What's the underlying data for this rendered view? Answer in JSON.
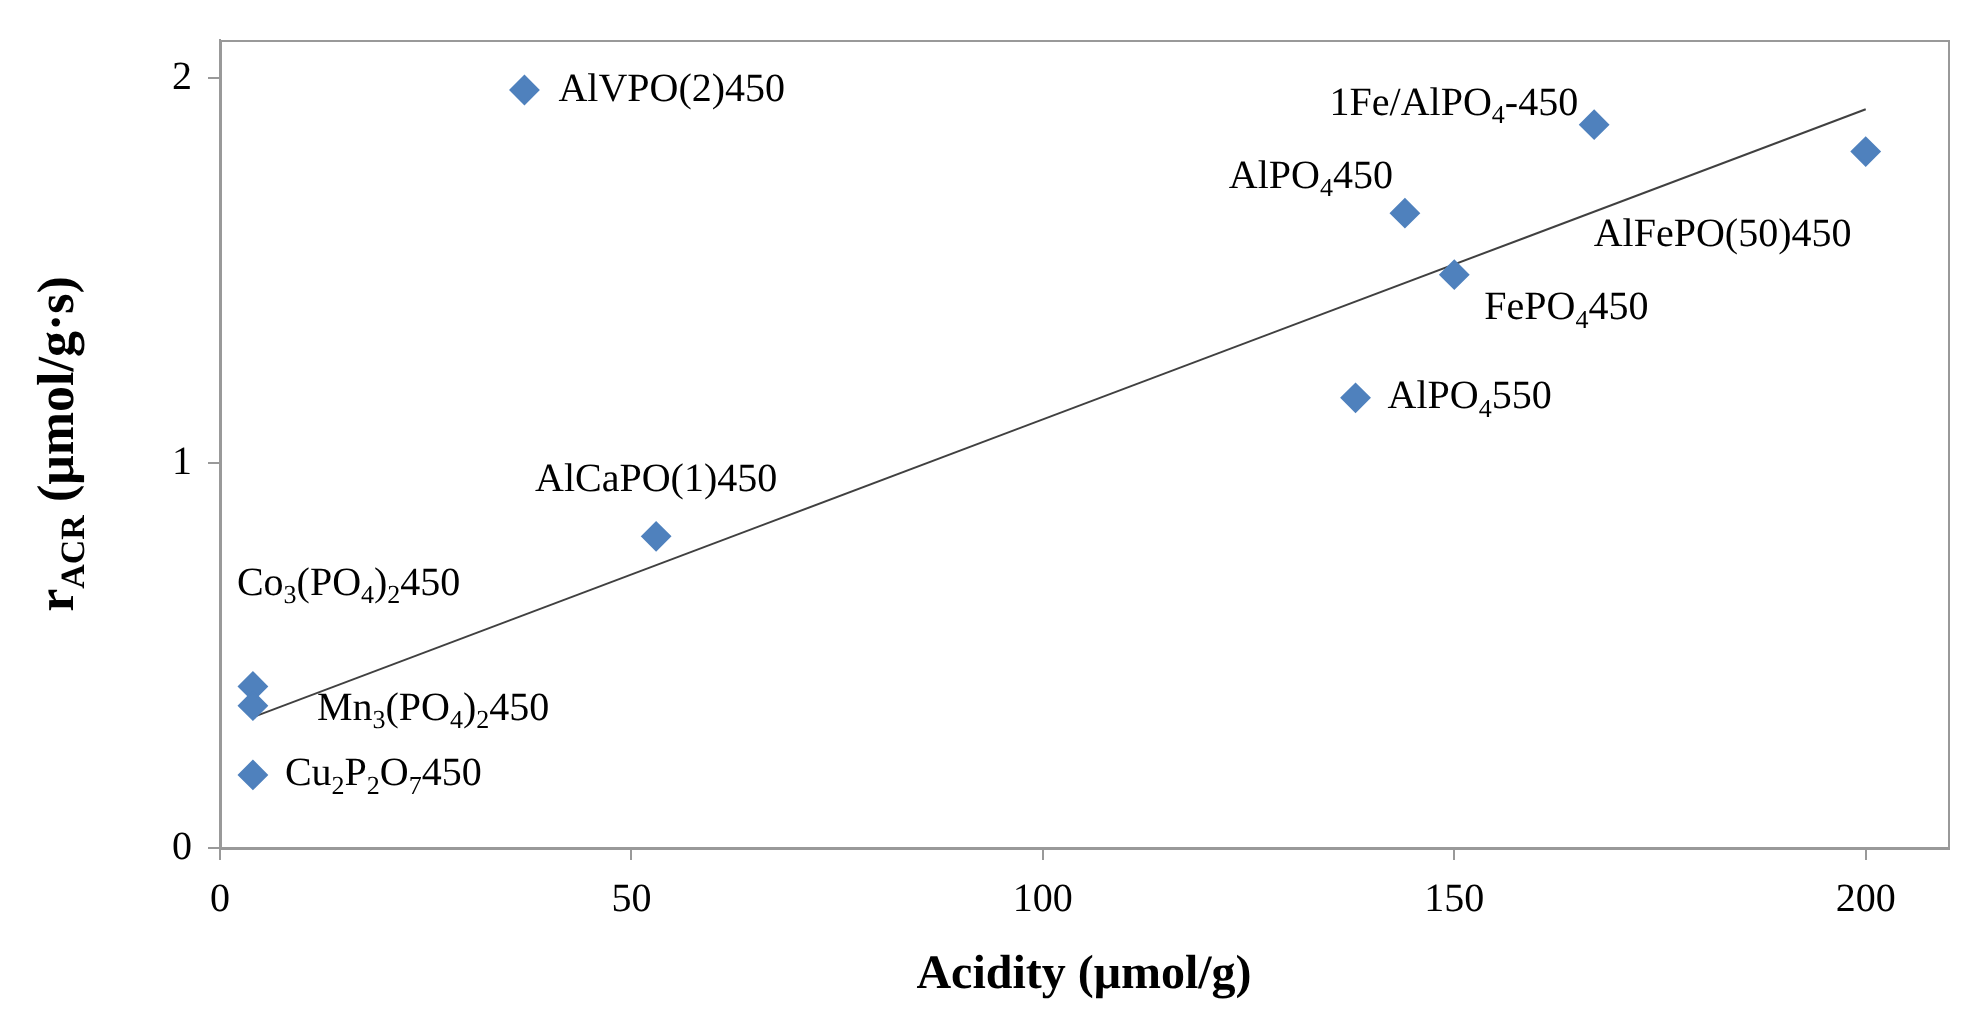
{
  "chart_data": {
    "type": "scatter",
    "xlabel": "Acidity (μmol/g)",
    "ylabel": "r$_{ACR}$ (μmol/g·s)",
    "xlim": [
      0,
      210
    ],
    "xticks": [
      0,
      50,
      100,
      150,
      200
    ],
    "ylim": [
      0,
      2.1
    ],
    "yticks": [
      0,
      1,
      2
    ],
    "grid": false,
    "legend": false,
    "marker": "diamond",
    "series": [
      {
        "color": "#4f81bd",
        "x": [
          37,
          167,
          200,
          144,
          150,
          138,
          53,
          4,
          4,
          4
        ],
        "values": [
          1.97,
          1.88,
          1.81,
          1.65,
          1.49,
          1.17,
          0.81,
          0.42,
          0.37,
          0.19
        ]
      },
      {
        "type": "line",
        "color": "#404040",
        "line_style": "solid",
        "marker": "none",
        "x": [
          4,
          200
        ],
        "values": [
          0.34,
          1.92
        ]
      }
    ],
    "annotations": [
      {
        "text": "AlVPO(2)450",
        "x": 37,
        "y": 1.97
      },
      {
        "text": "1Fe/AlPO$_{4}$-450",
        "x": 167,
        "y": 1.88
      },
      {
        "text": "AlFePO(50)450",
        "x": 200,
        "y": 1.81
      },
      {
        "text": "AlPO$_{4}$450",
        "x": 144,
        "y": 1.65
      },
      {
        "text": "FePO$_{4}$450",
        "x": 150,
        "y": 1.49
      },
      {
        "text": "AlPO$_{4}$550",
        "x": 138,
        "y": 1.17
      },
      {
        "text": "AlCaPO(1)450",
        "x": 53,
        "y": 0.81
      },
      {
        "text": "Co$_{3}$(PO$_{4}$)$_{2}$450",
        "x": 4,
        "y": 0.42
      },
      {
        "text": "Mn$_{3}$(PO$_{4}$)$_{2}$450",
        "x": 4,
        "y": 0.37
      },
      {
        "text": "Cu$_{2}$P$_{2}$O$_{7}$450",
        "x": 4,
        "y": 0.19
      }
    ]
  }
}
